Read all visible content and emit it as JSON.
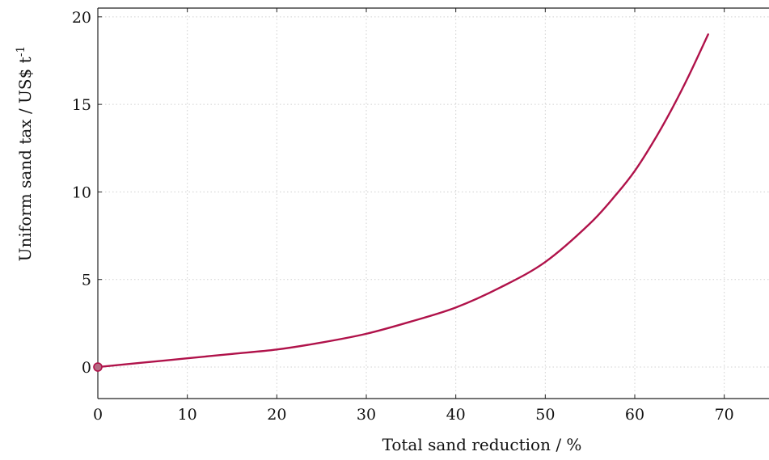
{
  "chart_data": {
    "type": "line",
    "xlabel": "Total sand reduction / %",
    "ylabel": "Uniform sand tax / US$ t",
    "ylabel_sup": "-1",
    "xlim": [
      0,
      75
    ],
    "ylim": [
      -1.8,
      20.5
    ],
    "xticks": [
      0,
      10,
      20,
      30,
      40,
      50,
      60,
      70
    ],
    "yticks": [
      0,
      5,
      10,
      15,
      20
    ],
    "grid": true,
    "line_color": "#b0124a",
    "marker_fill": "#b46a82",
    "series": [
      {
        "x": [
          0,
          5,
          10,
          15,
          20,
          25,
          30,
          35,
          40,
          45,
          50,
          55,
          58,
          60,
          62,
          64,
          66,
          68.2
        ],
        "values": [
          0,
          0.25,
          0.5,
          0.75,
          1.0,
          1.4,
          1.9,
          2.6,
          3.4,
          4.55,
          6.0,
          8.2,
          9.9,
          11.2,
          12.8,
          14.6,
          16.6,
          19.0
        ]
      }
    ],
    "marker": {
      "x": 0,
      "y": 0
    }
  }
}
